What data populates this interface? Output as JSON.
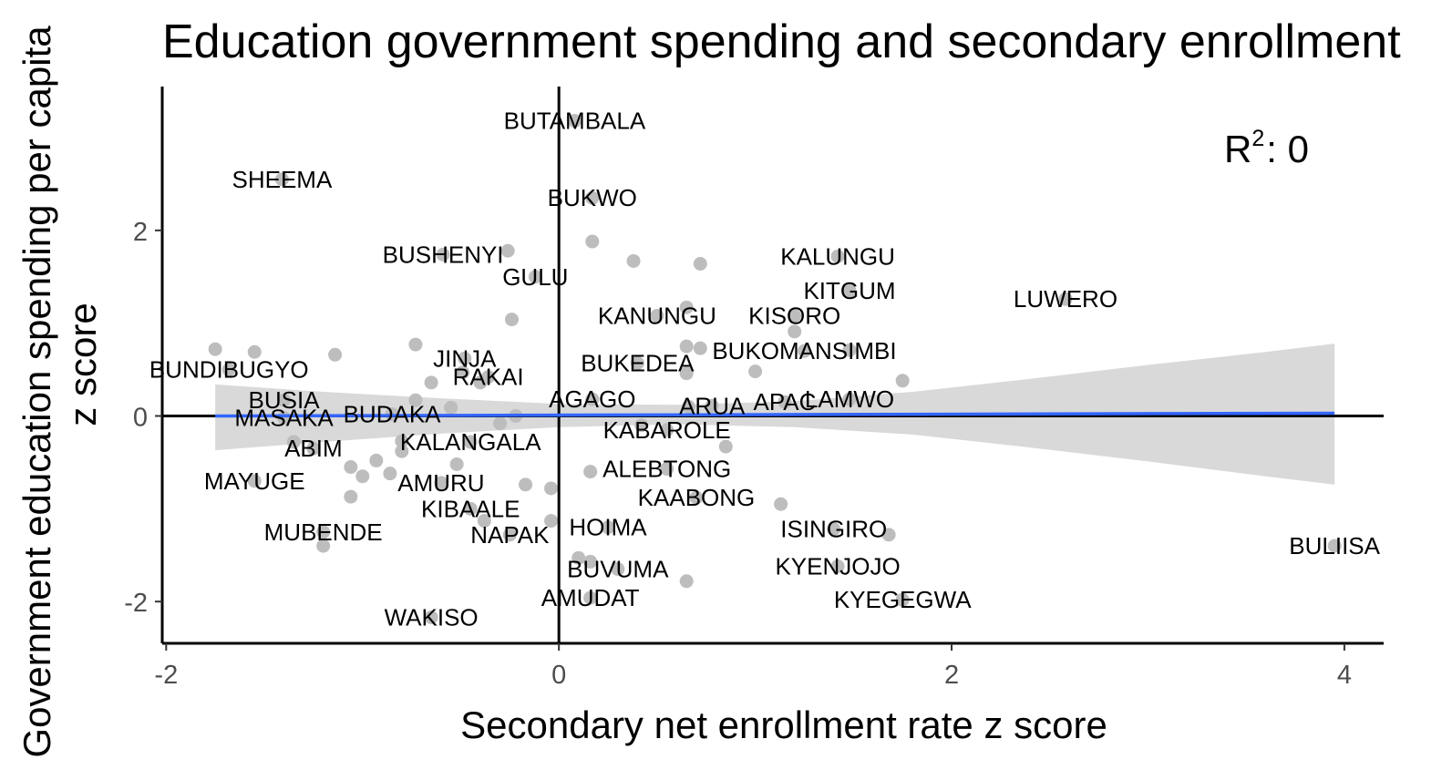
{
  "chart_data": {
    "type": "scatter",
    "title": "Education government spending and secondary enrollment",
    "xlabel": "Secondary net enrollment rate z score",
    "ylabel_line1": "Government education spending per capita",
    "ylabel_line2": "z score",
    "xlim": [
      -2.02,
      4.2
    ],
    "ylim": [
      -2.45,
      3.55
    ],
    "x_ticks": [
      -2,
      0,
      2,
      4
    ],
    "x_tick_labels": [
      "-2",
      "0",
      "2",
      "4"
    ],
    "y_ticks": [
      -2,
      0,
      2
    ],
    "y_tick_labels": [
      "-2",
      "0",
      "2"
    ],
    "annotation": {
      "base": "R",
      "sup": "2",
      "text": ": 0"
    },
    "reference_lines": {
      "x": 0,
      "y": 0
    },
    "fit_line": {
      "x": [
        -1.75,
        3.95
      ],
      "y": [
        0.0,
        0.03
      ],
      "color": "#3366ff"
    },
    "confidence_band": {
      "x": [
        -1.75,
        -1.2,
        -0.6,
        0.0,
        0.6,
        1.2,
        1.8,
        2.4,
        3.0,
        3.6,
        3.95
      ],
      "upper": [
        0.34,
        0.26,
        0.19,
        0.13,
        0.12,
        0.16,
        0.26,
        0.4,
        0.55,
        0.69,
        0.78
      ],
      "lower": [
        -0.37,
        -0.28,
        -0.19,
        -0.12,
        -0.09,
        -0.12,
        -0.2,
        -0.34,
        -0.49,
        -0.65,
        -0.74
      ]
    },
    "points_color": "#bdbdbd",
    "points": [
      {
        "label": "BUTAMBALA",
        "x": 0.08,
        "y": 3.18
      },
      {
        "label": "SHEEMA",
        "x": -1.41,
        "y": 2.55
      },
      {
        "label": "BUKWO",
        "x": 0.17,
        "y": 2.35
      },
      {
        "label": "",
        "x": 0.17,
        "y": 1.88
      },
      {
        "label": "BUSHENYI",
        "x": -0.59,
        "y": 1.74
      },
      {
        "label": "",
        "x": -0.26,
        "y": 1.78
      },
      {
        "label": "",
        "x": 0.38,
        "y": 1.67
      },
      {
        "label": "",
        "x": 0.72,
        "y": 1.64
      },
      {
        "label": "KALUNGU",
        "x": 1.42,
        "y": 1.72
      },
      {
        "label": "GULU",
        "x": -0.12,
        "y": 1.5
      },
      {
        "label": "KITGUM",
        "x": 1.48,
        "y": 1.35
      },
      {
        "label": "LUWERO",
        "x": 2.58,
        "y": 1.26
      },
      {
        "label": "",
        "x": 0.65,
        "y": 1.17
      },
      {
        "label": "KANUNGU",
        "x": 0.5,
        "y": 1.08
      },
      {
        "label": "KISORO",
        "x": 1.2,
        "y": 1.08
      },
      {
        "label": "",
        "x": -0.24,
        "y": 1.04
      },
      {
        "label": "",
        "x": 1.2,
        "y": 0.91
      },
      {
        "label": "",
        "x": -1.75,
        "y": 0.72
      },
      {
        "label": "",
        "x": -1.55,
        "y": 0.69
      },
      {
        "label": "",
        "x": -1.14,
        "y": 0.66
      },
      {
        "label": "",
        "x": -0.73,
        "y": 0.77
      },
      {
        "label": "",
        "x": 0.65,
        "y": 0.75
      },
      {
        "label": "",
        "x": 0.72,
        "y": 0.73
      },
      {
        "label": "BUKOMANSIMBI",
        "x": 1.25,
        "y": 0.7
      },
      {
        "label": "",
        "x": 1.48,
        "y": 0.71
      },
      {
        "label": "JINJA",
        "x": -0.48,
        "y": 0.62
      },
      {
        "label": "BUKEDEA",
        "x": 0.4,
        "y": 0.57
      },
      {
        "label": "BUNDIBUGYO",
        "x": -1.68,
        "y": 0.5
      },
      {
        "label": "",
        "x": -0.49,
        "y": 0.47
      },
      {
        "label": "",
        "x": 0.65,
        "y": 0.46
      },
      {
        "label": "",
        "x": 1.0,
        "y": 0.48
      },
      {
        "label": "RAKAI",
        "x": -0.36,
        "y": 0.42
      },
      {
        "label": "",
        "x": -0.65,
        "y": 0.36
      },
      {
        "label": "",
        "x": -0.4,
        "y": 0.36
      },
      {
        "label": "",
        "x": 1.75,
        "y": 0.38
      },
      {
        "label": "APAC",
        "x": 1.15,
        "y": 0.15
      },
      {
        "label": "LAMWO",
        "x": 1.48,
        "y": 0.18
      },
      {
        "label": "BUSIA",
        "x": -1.4,
        "y": 0.17
      },
      {
        "label": "AGAGO",
        "x": 0.17,
        "y": 0.18
      },
      {
        "label": "",
        "x": -0.73,
        "y": 0.17
      },
      {
        "label": "BUDAKA",
        "x": -0.85,
        "y": 0.02
      },
      {
        "label": "",
        "x": -0.55,
        "y": 0.09
      },
      {
        "label": "ARUA",
        "x": 0.78,
        "y": 0.11
      },
      {
        "label": "",
        "x": 0.66,
        "y": 0.1
      },
      {
        "label": "MASAKA",
        "x": -1.4,
        "y": -0.02
      },
      {
        "label": "",
        "x": -0.3,
        "y": -0.08
      },
      {
        "label": "",
        "x": -0.22,
        "y": 0.0
      },
      {
        "label": "KABAROLE",
        "x": 0.55,
        "y": -0.15
      },
      {
        "label": "",
        "x": 0.42,
        "y": -0.1
      },
      {
        "label": "KALANGALA",
        "x": -0.45,
        "y": -0.28
      },
      {
        "label": "",
        "x": -0.8,
        "y": -0.27
      },
      {
        "label": "",
        "x": 0.85,
        "y": -0.33
      },
      {
        "label": "ABIM",
        "x": -1.25,
        "y": -0.35
      },
      {
        "label": "",
        "x": -1.35,
        "y": -0.28
      },
      {
        "label": "",
        "x": -0.8,
        "y": -0.38
      },
      {
        "label": "ALEBTONG",
        "x": 0.55,
        "y": -0.57
      },
      {
        "label": "",
        "x": 0.16,
        "y": -0.6
      },
      {
        "label": "",
        "x": -0.52,
        "y": -0.52
      },
      {
        "label": "",
        "x": -0.93,
        "y": -0.48
      },
      {
        "label": "",
        "x": -1.06,
        "y": -0.55
      },
      {
        "label": "",
        "x": -1.0,
        "y": -0.65
      },
      {
        "label": "",
        "x": -0.86,
        "y": -0.62
      },
      {
        "label": "AMURU",
        "x": -0.6,
        "y": -0.72
      },
      {
        "label": "MAYUGE",
        "x": -1.55,
        "y": -0.7
      },
      {
        "label": "",
        "x": -0.17,
        "y": -0.74
      },
      {
        "label": "",
        "x": -0.04,
        "y": -0.78
      },
      {
        "label": "KAABONG",
        "x": 0.7,
        "y": -0.88
      },
      {
        "label": "",
        "x": -1.06,
        "y": -0.87
      },
      {
        "label": "",
        "x": 1.13,
        "y": -0.95
      },
      {
        "label": "KIBAALE",
        "x": -0.45,
        "y": -1.0
      },
      {
        "label": "",
        "x": -0.38,
        "y": -1.13
      },
      {
        "label": "",
        "x": -0.04,
        "y": -1.13
      },
      {
        "label": "HOIMA",
        "x": 0.25,
        "y": -1.2
      },
      {
        "label": "ISINGIRO",
        "x": 1.4,
        "y": -1.22
      },
      {
        "label": "",
        "x": 1.68,
        "y": -1.28
      },
      {
        "label": "MUBENDE",
        "x": -1.2,
        "y": -1.25
      },
      {
        "label": "",
        "x": -1.2,
        "y": -1.4
      },
      {
        "label": "NAPAK",
        "x": -0.25,
        "y": -1.28
      },
      {
        "label": "BULIISA",
        "x": 3.95,
        "y": -1.4
      },
      {
        "label": "",
        "x": 0.1,
        "y": -1.53
      },
      {
        "label": "",
        "x": 0.16,
        "y": -1.57
      },
      {
        "label": "KYENJOJO",
        "x": 1.42,
        "y": -1.62
      },
      {
        "label": "BUVUMA",
        "x": 0.3,
        "y": -1.65
      },
      {
        "label": "",
        "x": 0.65,
        "y": -1.78
      },
      {
        "label": "AMUDAT",
        "x": 0.16,
        "y": -1.96
      },
      {
        "label": "KYEGEGWA",
        "x": 1.75,
        "y": -1.98
      },
      {
        "label": "WAKISO",
        "x": -0.65,
        "y": -2.17
      }
    ]
  }
}
